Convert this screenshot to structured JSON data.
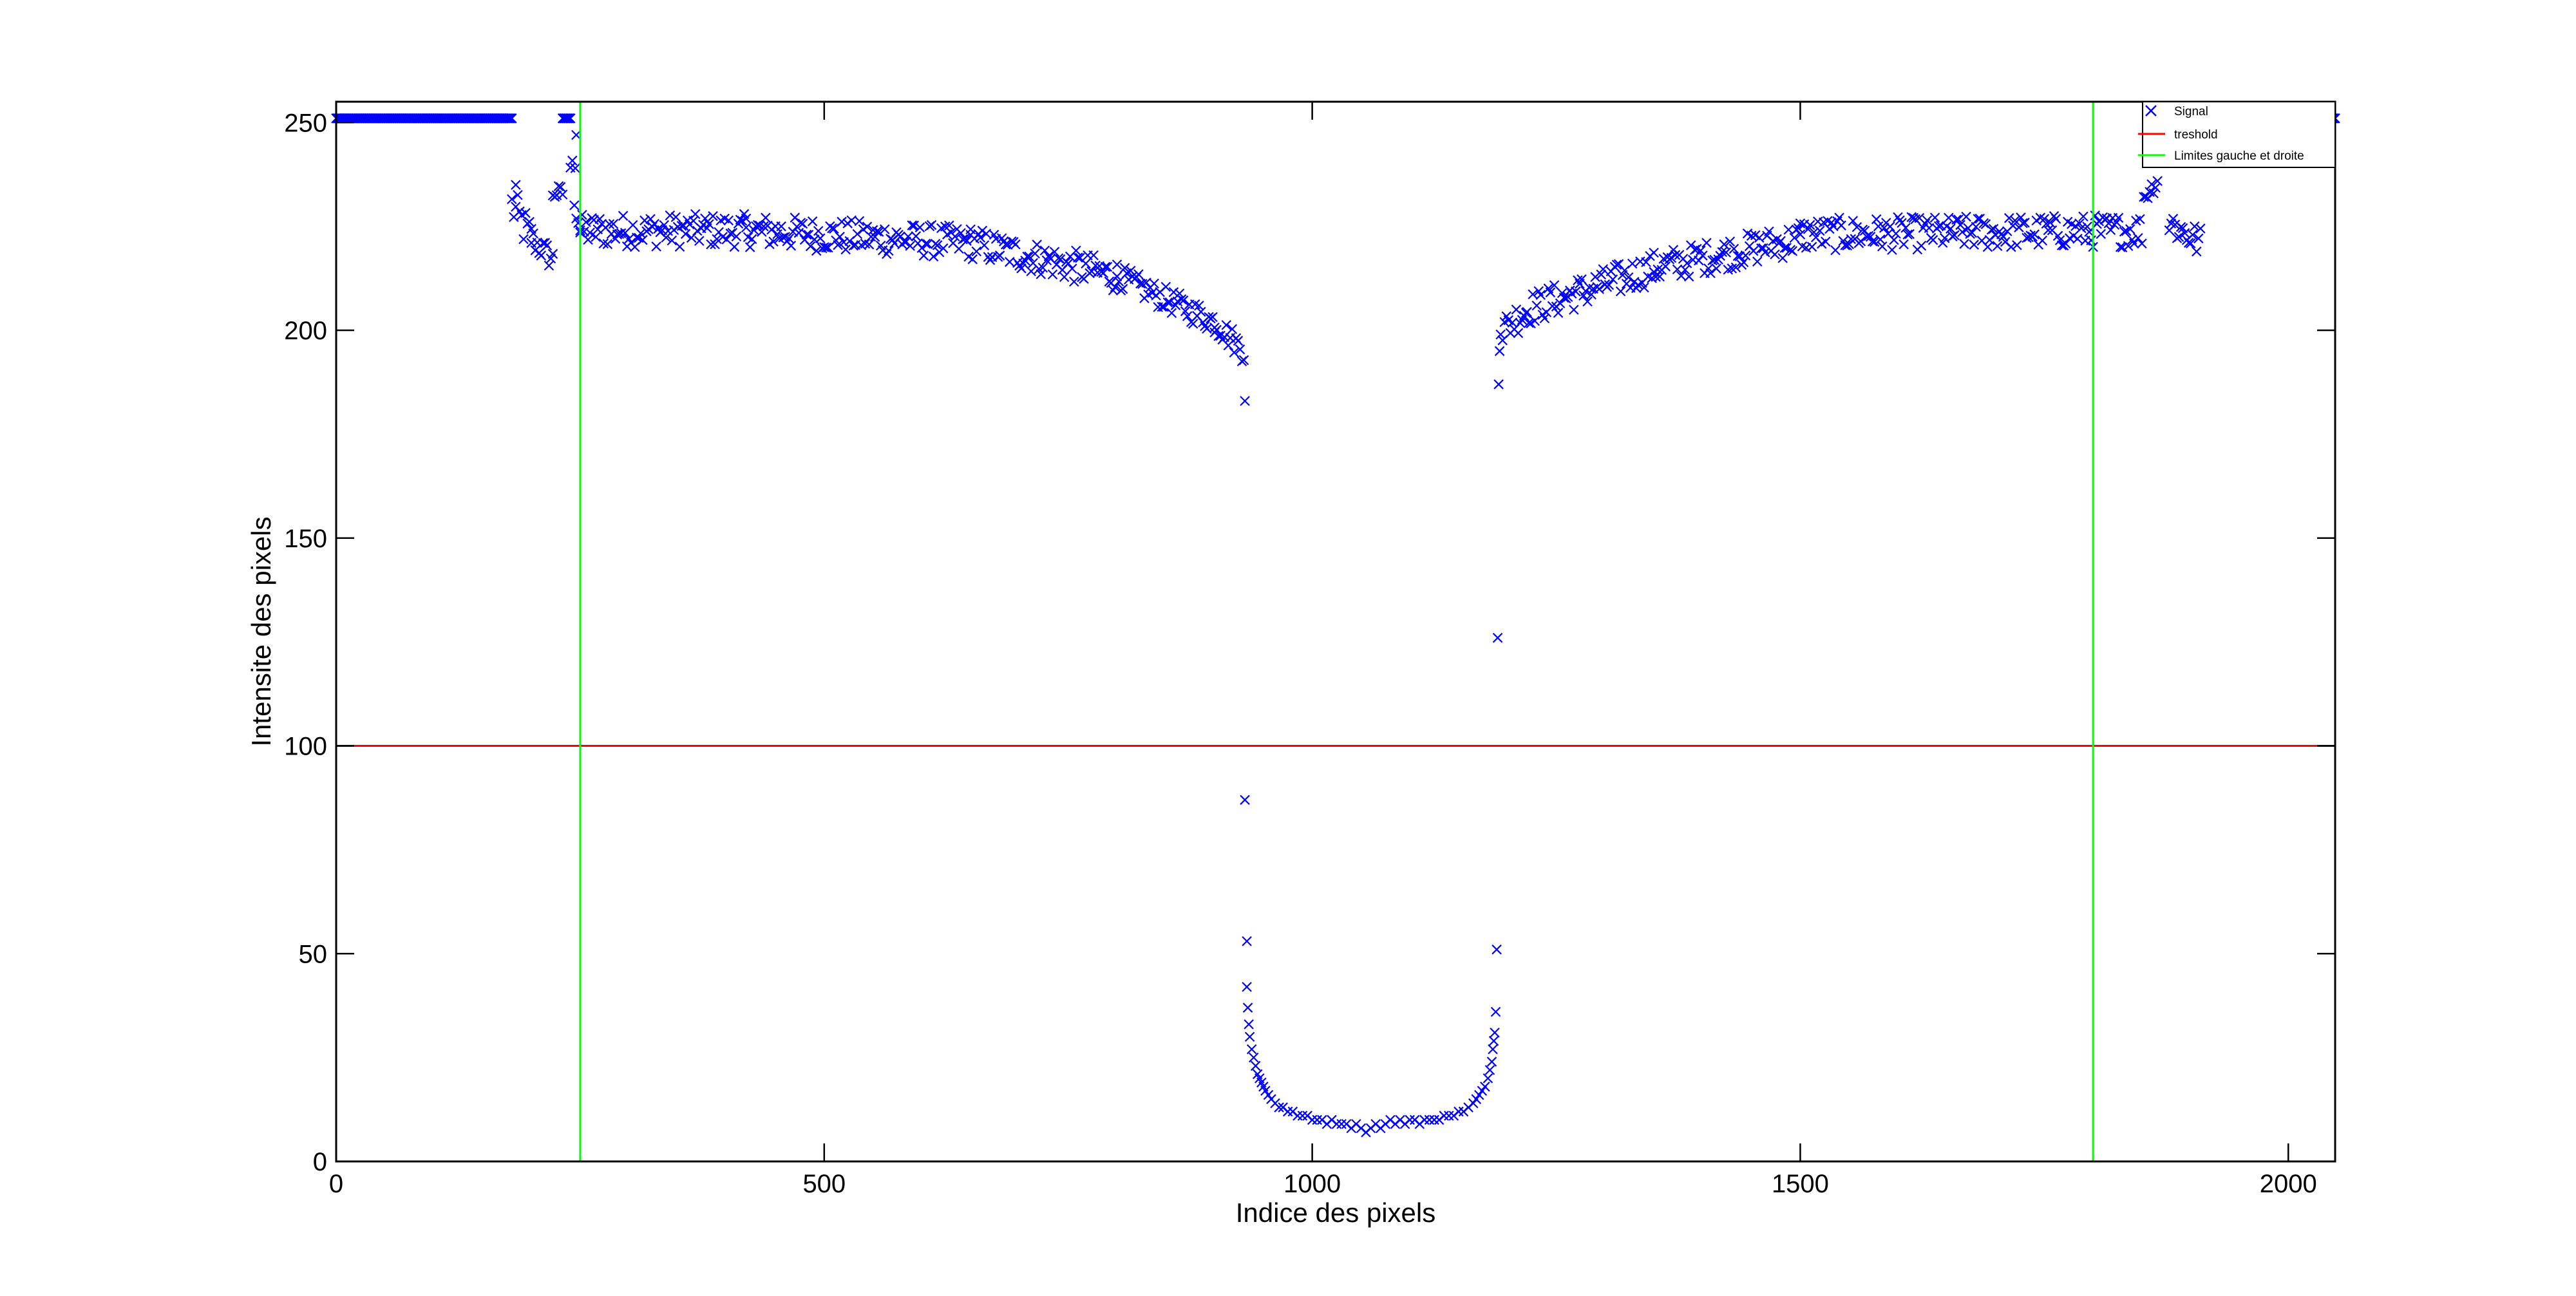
{
  "chart_data": {
    "type": "scatter",
    "xlabel": "Indice des pixels",
    "ylabel": "Intensite des pixels",
    "xlim": [
      0,
      2048
    ],
    "ylim": [
      0,
      255
    ],
    "x_ticks": [
      0,
      500,
      1000,
      1500,
      2000
    ],
    "y_ticks": [
      0,
      50,
      100,
      150,
      200,
      250
    ],
    "grid": false,
    "legend_position": "top-right",
    "legend": [
      "Signal",
      "treshold",
      "Limites gauche et droite"
    ],
    "colors": {
      "signal": "#0000ff",
      "threshold": "#ff0000",
      "limits": "#00ff00",
      "axes": "#000000"
    },
    "series": [
      {
        "name": "Signal",
        "kind": "marker-x",
        "color": "#0000ff",
        "segments": [
          {
            "x": [
              0,
              180
            ],
            "y": [
              251,
              251
            ],
            "noise": 0
          },
          {
            "x": [
              180,
              200
            ],
            "y": [
              230,
              222
            ],
            "noise": 5
          },
          {
            "x": [
              200,
              222
            ],
            "y": [
              222,
              217
            ],
            "noise": 3
          },
          {
            "x": [
              222,
              232
            ],
            "y": [
              233,
              233
            ],
            "noise": 2
          },
          {
            "x": [
              232,
              240
            ],
            "y": [
              251,
              251
            ],
            "noise": 0
          },
          {
            "x": [
              240,
              250
            ],
            "y": [
              240,
              225
            ],
            "noise": 6
          },
          {
            "x": [
              250,
              420
            ],
            "y": [
              224,
              224
            ],
            "noise": 4
          },
          {
            "x": [
              420,
              650
            ],
            "y": [
              224,
              221
            ],
            "noise": 4
          },
          {
            "x": [
              650,
              800
            ],
            "y": [
              221,
              213
            ],
            "noise": 4
          },
          {
            "x": [
              800,
              900
            ],
            "y": [
              213,
              202
            ],
            "noise": 3
          },
          {
            "x": [
              900,
              930
            ],
            "y": [
              202,
              195
            ],
            "noise": 3
          },
          {
            "x": [
              1195,
              1220
            ],
            "y": [
              200,
              205
            ],
            "noise": 4
          },
          {
            "x": [
              1220,
              1350
            ],
            "y": [
              205,
              215
            ],
            "noise": 4
          },
          {
            "x": [
              1350,
              1500
            ],
            "y": [
              215,
              222
            ],
            "noise": 4
          },
          {
            "x": [
              1500,
              1850
            ],
            "y": [
              223,
              224
            ],
            "noise": 4
          },
          {
            "x": [
              1852,
              1866
            ],
            "y": [
              232,
              236
            ],
            "noise": 2
          },
          {
            "x": [
              1878,
              1910
            ],
            "y": [
              226,
              221
            ],
            "noise": 4
          },
          {
            "x": [
              2040,
              2048
            ],
            "y": [
              251,
              251
            ],
            "noise": 0
          }
        ],
        "points": [
          [
            931,
            183
          ],
          [
            931,
            87
          ],
          [
            933,
            53
          ],
          [
            933,
            42
          ],
          [
            934,
            37
          ],
          [
            935,
            33
          ],
          [
            936,
            30
          ],
          [
            938,
            27
          ],
          [
            940,
            25
          ],
          [
            942,
            23
          ],
          [
            944,
            21
          ],
          [
            946,
            20
          ],
          [
            948,
            19
          ],
          [
            950,
            18
          ],
          [
            952,
            17
          ],
          [
            955,
            16
          ],
          [
            958,
            15
          ],
          [
            962,
            14
          ],
          [
            966,
            13
          ],
          [
            970,
            13
          ],
          [
            975,
            12
          ],
          [
            980,
            12
          ],
          [
            985,
            11
          ],
          [
            990,
            11
          ],
          [
            995,
            11
          ],
          [
            1000,
            10
          ],
          [
            1005,
            10
          ],
          [
            1010,
            10
          ],
          [
            1015,
            9
          ],
          [
            1020,
            10
          ],
          [
            1025,
            9
          ],
          [
            1030,
            9
          ],
          [
            1035,
            9
          ],
          [
            1040,
            8
          ],
          [
            1045,
            9
          ],
          [
            1050,
            8
          ],
          [
            1055,
            7
          ],
          [
            1060,
            8
          ],
          [
            1065,
            9
          ],
          [
            1070,
            8
          ],
          [
            1075,
            9
          ],
          [
            1080,
            10
          ],
          [
            1085,
            9
          ],
          [
            1090,
            10
          ],
          [
            1095,
            9
          ],
          [
            1100,
            10
          ],
          [
            1105,
            10
          ],
          [
            1110,
            9
          ],
          [
            1115,
            10
          ],
          [
            1120,
            10
          ],
          [
            1125,
            10
          ],
          [
            1130,
            10
          ],
          [
            1135,
            11
          ],
          [
            1140,
            11
          ],
          [
            1145,
            11
          ],
          [
            1150,
            12
          ],
          [
            1155,
            12
          ],
          [
            1160,
            13
          ],
          [
            1165,
            14
          ],
          [
            1168,
            15
          ],
          [
            1171,
            16
          ],
          [
            1174,
            17
          ],
          [
            1177,
            18
          ],
          [
            1180,
            20
          ],
          [
            1182,
            22
          ],
          [
            1184,
            24
          ],
          [
            1185,
            27
          ],
          [
            1186,
            29
          ],
          [
            1187,
            31
          ],
          [
            1188,
            36
          ],
          [
            1189,
            51
          ],
          [
            1190,
            126
          ],
          [
            1191,
            187
          ],
          [
            1192,
            195
          ],
          [
            1193,
            199
          ],
          [
            184,
            235
          ],
          [
            246,
            247
          ],
          [
            245,
            239
          ]
        ]
      },
      {
        "name": "treshold",
        "kind": "hline",
        "y": 100,
        "color": "#ff0000"
      },
      {
        "name": "Limites gauche et droite",
        "kind": "vlines",
        "x": [
          250,
          1800
        ],
        "color": "#00ff00"
      }
    ]
  }
}
